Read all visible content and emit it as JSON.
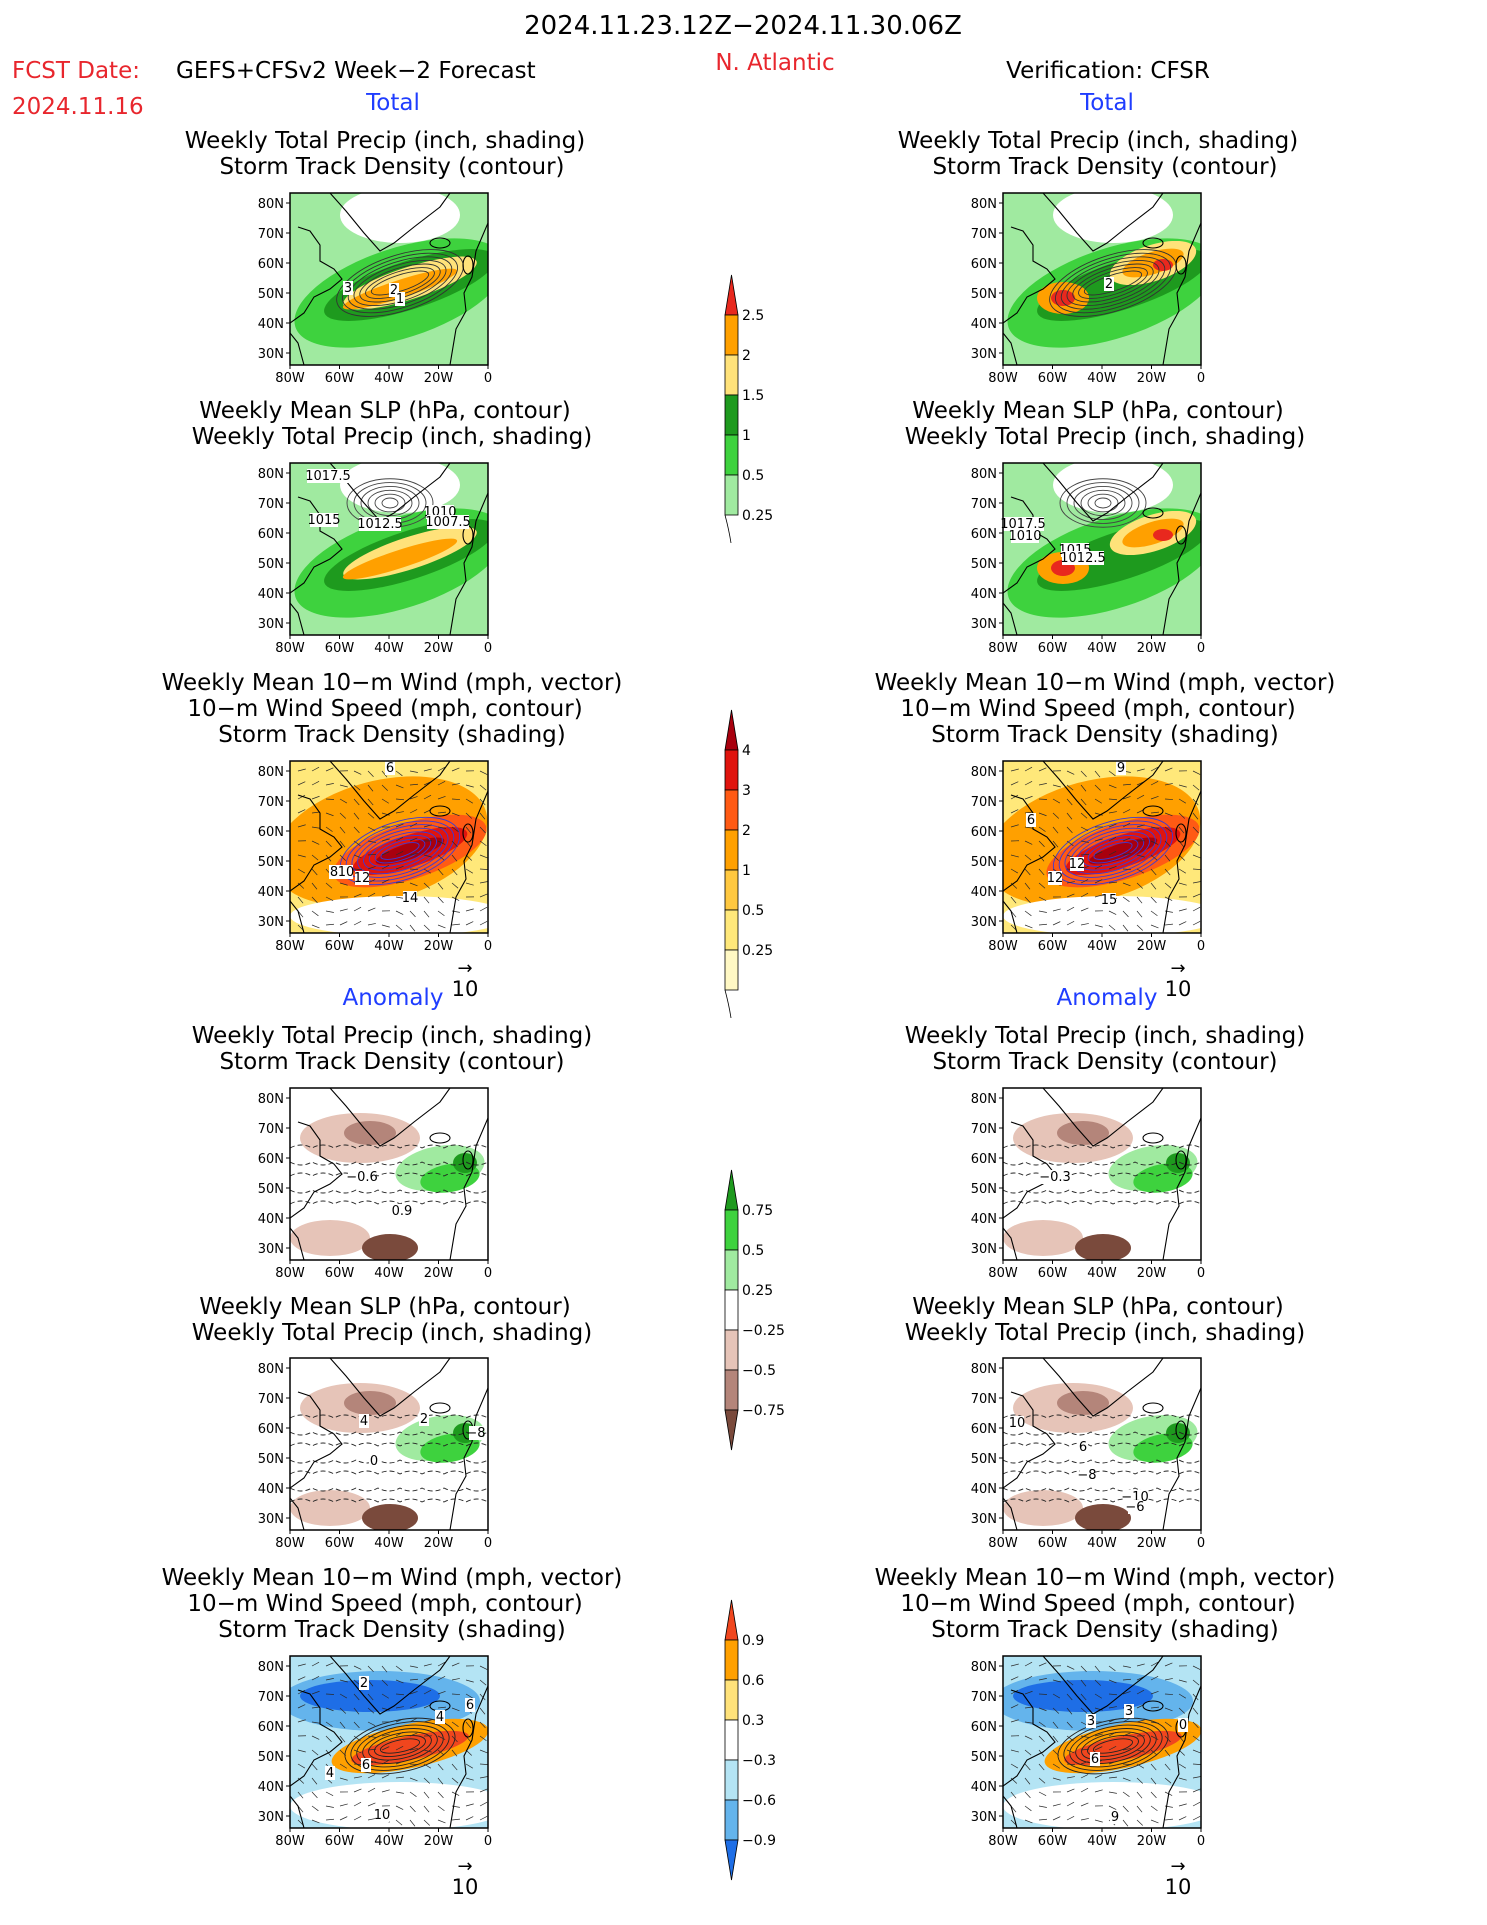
{
  "header": {
    "period": "2024.11.23.12Z−2024.11.30.06Z",
    "fcst_label": "FCST Date:",
    "fcst_model": "GEFS+CFSv2 Week−2 Forecast",
    "fcst_date": "2024.11.16",
    "region": "N. Atlantic",
    "verification": "Verification: CFSR"
  },
  "sections": {
    "total": "Total",
    "anomaly": "Anomaly"
  },
  "titles": {
    "precip_track": [
      "Weekly Total Precip (inch, shading)",
      "Storm Track Density (contour)"
    ],
    "slp_precip": [
      "Weekly Mean SLP (hPa, contour)",
      "Weekly Total Precip (inch, shading)"
    ],
    "wind_track": [
      "Weekly Mean 10−m Wind (mph, vector)",
      "10−m Wind Speed (mph, contour)",
      "Storm Track Density (shading)"
    ]
  },
  "axes": {
    "lat": [
      "80N",
      "70N",
      "60N",
      "50N",
      "40N",
      "30N"
    ],
    "lon": [
      "80W",
      "60W",
      "40W",
      "20W",
      "0"
    ]
  },
  "vector_ref": "10",
  "colorbars": [
    {
      "labels": [
        "2.5",
        "2",
        "1.5",
        "1",
        "0.5",
        "0.25"
      ],
      "colors": [
        "#e8281e",
        "#ffa000",
        "#ffe27a",
        "#1e9a1e",
        "#3ed23e",
        "#a0eaa0"
      ]
    },
    {
      "labels": [
        "4",
        "3",
        "2",
        "1",
        "0.5",
        "0.25"
      ],
      "colors": [
        "#a8000e",
        "#e0140e",
        "#ff5a14",
        "#ffa000",
        "#ffc840",
        "#ffe87a",
        "#fff8c4"
      ]
    },
    {
      "labels": [
        "0.75",
        "0.5",
        "0.25",
        "−0.25",
        "−0.5",
        "−0.75"
      ],
      "colors": [
        "#1e9a1e",
        "#3ed23e",
        "#a0eaa0",
        "#ffffff",
        "#e6c4b8",
        "#b4857a",
        "#7a4a3c"
      ]
    },
    {
      "labels": [
        "0.9",
        "0.6",
        "0.3",
        "−0.3",
        "−0.6",
        "−0.9"
      ],
      "colors": [
        "#f0461e",
        "#ffa000",
        "#ffe27a",
        "#ffffff",
        "#b4e4f4",
        "#64b4ec",
        "#1e6ee6"
      ]
    }
  ],
  "contour_labels": {
    "fc_total_precip": [
      "3",
      "2",
      "1"
    ],
    "fc_total_slp": [
      "1017.5",
      "1015",
      "1012.5",
      "1010",
      "1007.5"
    ],
    "fc_total_wind": [
      "8",
      "10",
      "12",
      "14",
      "6"
    ],
    "vr_total_precip": [
      "2"
    ],
    "vr_total_slp": [
      "1017.5",
      "1010",
      "1015",
      "1012.5"
    ],
    "vr_total_wind": [
      "12",
      "12",
      "15",
      "9",
      "6"
    ],
    "fc_anom_precip": [
      "−0.6",
      "0.9"
    ],
    "fc_anom_slp": [
      "4",
      "2",
      "0",
      "−8"
    ],
    "vr_anom_precip": [
      "−0.3"
    ],
    "vr_anom_slp": [
      "10",
      "6",
      "−8",
      "−10",
      "−6"
    ],
    "fc_anom_wind": [
      "2",
      "6",
      "4",
      "6",
      "10",
      "4"
    ],
    "vr_anom_wind": [
      "3",
      "3",
      "0",
      "6",
      "9"
    ]
  }
}
